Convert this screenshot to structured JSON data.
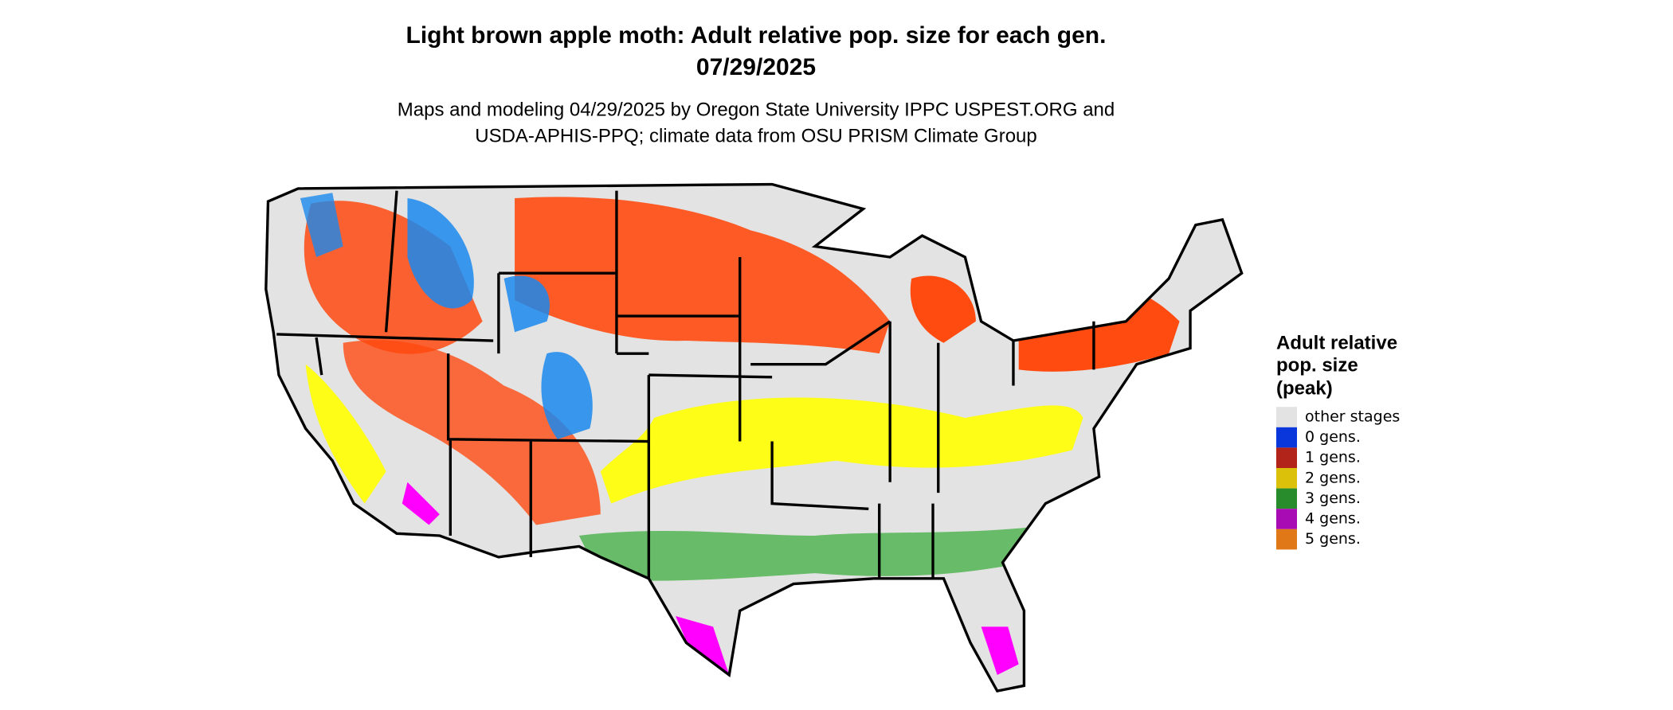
{
  "title": [
    "Light brown apple moth: Adult relative pop. size for each gen.",
    "07/29/2025"
  ],
  "subtitle": [
    "Maps and modeling 04/29/2025 by Oregon State University IPPC USPEST.ORG and",
    "USDA-APHIS-PPQ; climate data from OSU PRISM Climate Group"
  ],
  "legend": {
    "title": [
      "Adult relative",
      "pop. size",
      "(peak)"
    ],
    "items": [
      {
        "label": "other stages",
        "color": "#e3e3e3"
      },
      {
        "label": "0 gens.",
        "color": "#0a37dc"
      },
      {
        "label": "1 gens.",
        "color": "#b2241a"
      },
      {
        "label": "2 gens.",
        "color": "#dcc10a"
      },
      {
        "label": "3 gens.",
        "color": "#288c2c"
      },
      {
        "label": "4 gens.",
        "color": "#a80ab4"
      },
      {
        "label": "5 gens.",
        "color": "#e07818"
      }
    ]
  }
}
